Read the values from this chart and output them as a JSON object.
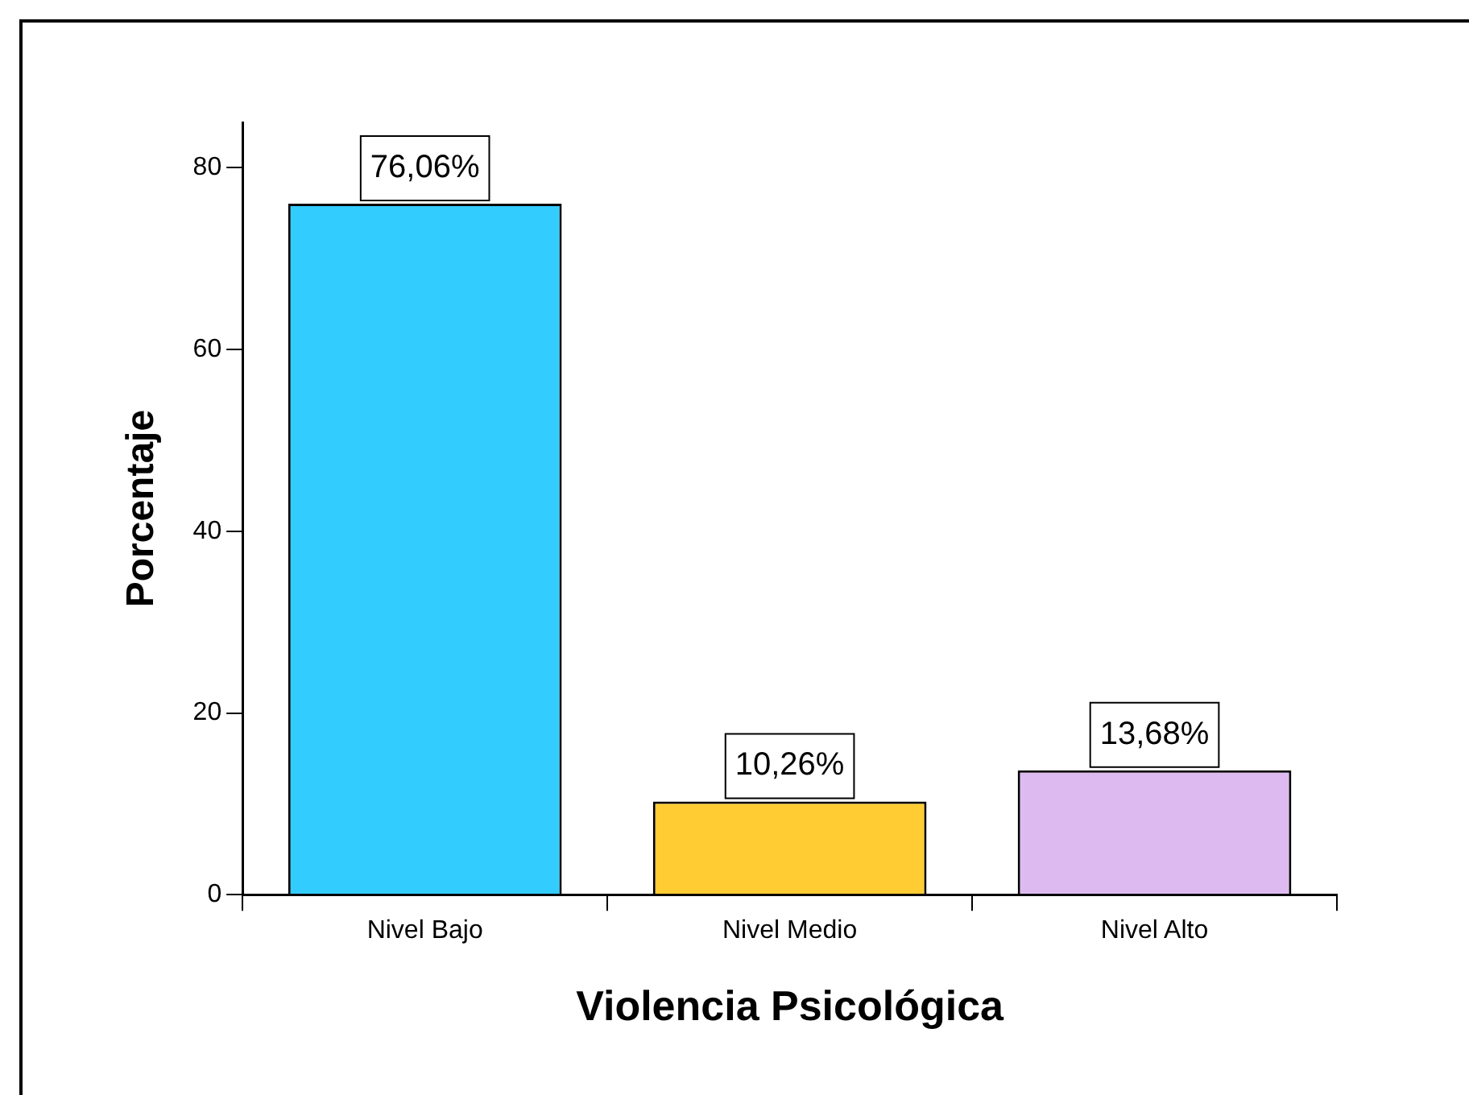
{
  "chart_data": {
    "type": "bar",
    "xlabel": "Violencia Psicológica",
    "ylabel": "Porcentaje",
    "categories": [
      "Nivel Bajo",
      "Nivel Medio",
      "Nivel Alto"
    ],
    "values": [
      76.06,
      10.26,
      13.68
    ],
    "colors": [
      "#33ccff",
      "#ffcc33",
      "#ddbbf0"
    ],
    "value_labels": [
      "76,06%",
      "10,26%",
      "13,68%"
    ],
    "ylim": [
      0,
      85
    ],
    "yticks": [
      0,
      20,
      40,
      60,
      80
    ],
    "grid": false,
    "legend": false
  }
}
